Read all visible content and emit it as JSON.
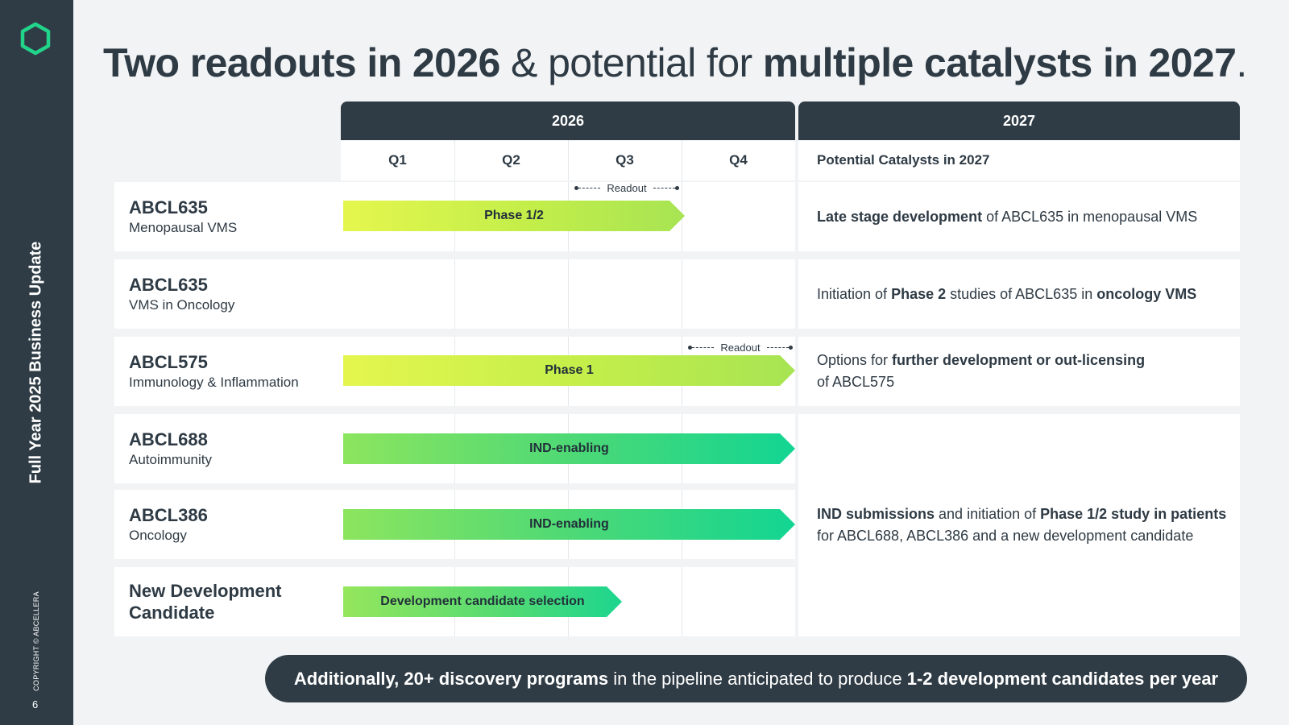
{
  "sidebar": {
    "title": "Full Year 2025 Business Update",
    "copyright": "COPYRIGHT © ABCELLERA",
    "page_number": "6",
    "logo_icon": "hexagon-logo-icon",
    "accent_color": "#22d38a"
  },
  "headline": {
    "part1": "Two readouts in 2026",
    "part2": " & potential for ",
    "part3": "multiple catalysts in 2027",
    "part4": "."
  },
  "timeline": {
    "year_2026": "2026",
    "year_2027": "2027",
    "quarters": [
      "Q1",
      "Q2",
      "Q3",
      "Q4"
    ],
    "catalyst_header": "Potential Catalysts in 2027"
  },
  "programs": [
    {
      "name": "ABCL635",
      "indication": "Menopausal VMS"
    },
    {
      "name": "ABCL635",
      "indication": "VMS in Oncology"
    },
    {
      "name": "ABCL575",
      "indication": "Immunology & Inflammation"
    },
    {
      "name": "ABCL688",
      "indication": "Autoimmunity"
    },
    {
      "name": "ABCL386",
      "indication": "Oncology"
    },
    {
      "name": "New Development Candidate",
      "indication": ""
    }
  ],
  "bars": {
    "abcl635_vms": {
      "label": "Phase 1/2",
      "start_quarter": 1,
      "end_quarter": 3
    },
    "abcl575": {
      "label": "Phase 1",
      "start_quarter": 1,
      "end_quarter": 4
    },
    "abcl688": {
      "label": "IND-enabling",
      "start_quarter": 1,
      "end_quarter": 4
    },
    "abcl386": {
      "label": "IND-enabling",
      "start_quarter": 1,
      "end_quarter": 4
    },
    "new_candidate": {
      "label": "Development candidate selection",
      "start_quarter": 1,
      "end_quarter": 2.5
    }
  },
  "readouts": {
    "abcl635": {
      "label": "Readout",
      "quarter": "Q3"
    },
    "abcl575": {
      "label": "Readout",
      "quarter": "Q4"
    }
  },
  "catalysts": {
    "c1": {
      "b1": "Late stage development",
      "t1": " of ABCL635 in menopausal VMS"
    },
    "c2": {
      "t1": "Initiation of ",
      "b1": "Phase 2",
      "t2": " studies of ABCL635 in ",
      "b2": "oncology VMS"
    },
    "c3": {
      "t1": "Options for ",
      "b1": "further development or out-licensing",
      "t2": "of ABCL575"
    },
    "c4": {
      "b1": "IND submissions",
      "t1": " and initiation of ",
      "b2": "Phase 1/2 study in patients",
      "t2": "for ABCL688, ABCL386 and a new development candidate"
    }
  },
  "footer": {
    "b1": "Additionally, 20+ discovery programs",
    "t1": " in the pipeline anticipated to produce ",
    "b2": "1-2 development candidates per year"
  }
}
